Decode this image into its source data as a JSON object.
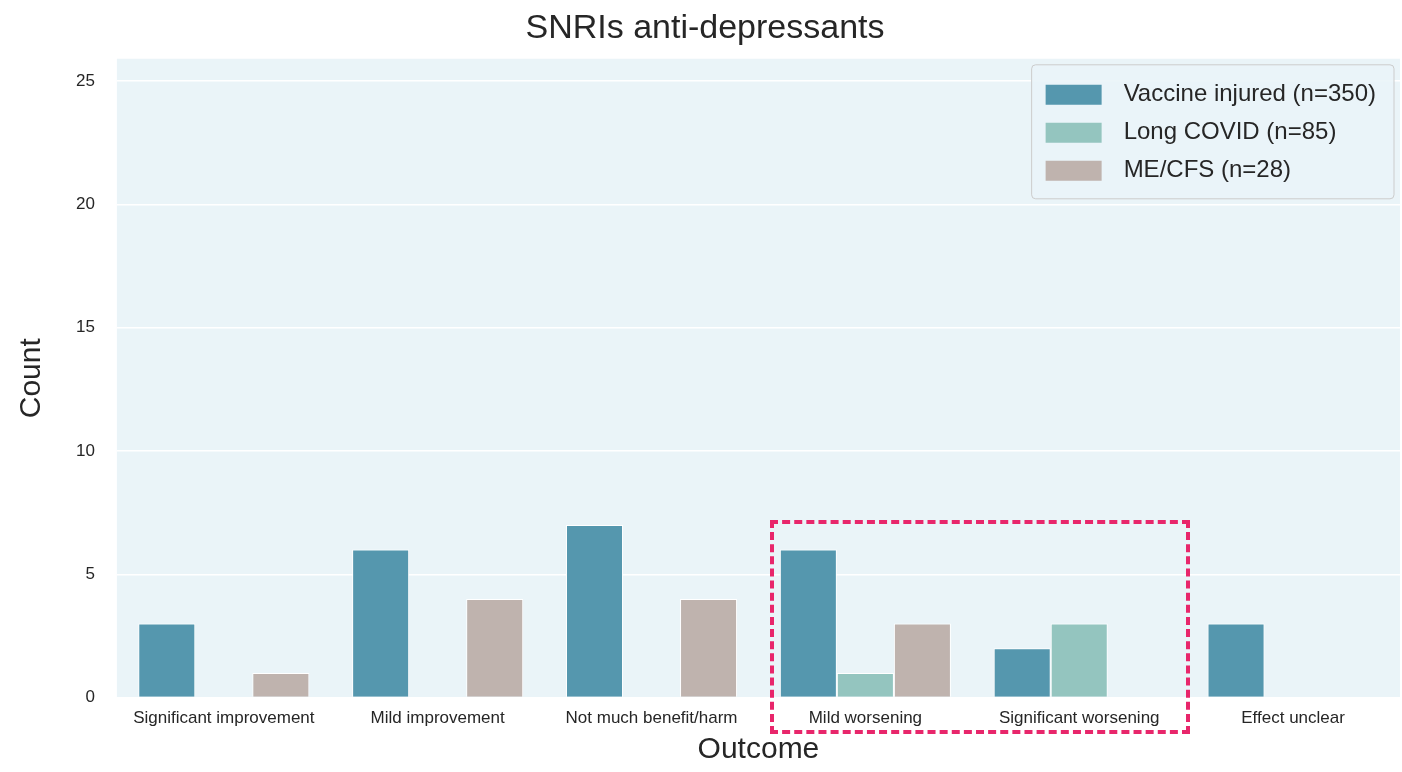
{
  "chart_data": {
    "type": "bar",
    "title": "SNRIs anti-depressants",
    "xlabel": "Outcome",
    "ylabel": "Count",
    "categories": [
      "Significant improvement",
      "Mild improvement",
      "Not much benefit/harm",
      "Mild worsening",
      "Significant worsening",
      "Effect unclear"
    ],
    "series": [
      {
        "name": "Vaccine injured (n=350)",
        "color": "#5597ae",
        "values": [
          3,
          6,
          7,
          6,
          2,
          3
        ]
      },
      {
        "name": "Long COVID (n=85)",
        "color": "#94c5bf",
        "values": [
          0,
          0,
          0,
          1,
          3,
          0
        ]
      },
      {
        "name": "ME/CFS (n=28)",
        "color": "#bfb3ae",
        "values": [
          1,
          4,
          4,
          3,
          0,
          0
        ]
      }
    ],
    "ylim": [
      0,
      25.9
    ],
    "yticks": [
      0,
      5,
      10,
      15,
      20,
      25
    ],
    "grid": "y",
    "legend": "top right"
  }
}
